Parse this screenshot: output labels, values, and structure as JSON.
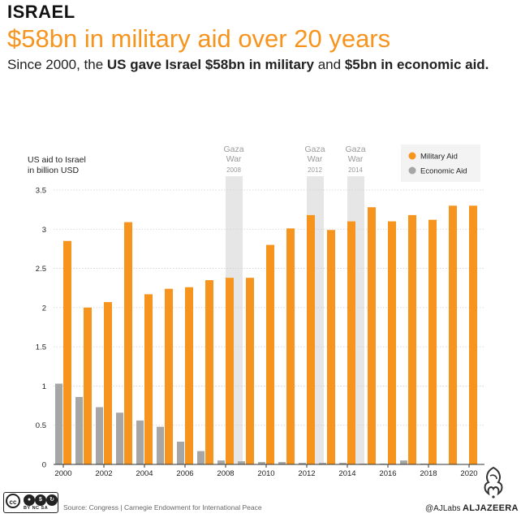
{
  "header": {
    "kicker": "ISRAEL",
    "title": "$58bn in military aid over 20 years",
    "subtitle_pre": "Since 2000, the ",
    "subtitle_bold1": "US gave Israel $58bn in military",
    "subtitle_mid": " and ",
    "subtitle_bold2": "$5bn in economic aid."
  },
  "chart_data": {
    "type": "bar",
    "ylabel_line1": "US aid to Israel",
    "ylabel_line2": "in billion USD",
    "ylim": [
      0,
      3.5
    ],
    "yticks": [
      0,
      0.5,
      1,
      1.5,
      2,
      2.5,
      3,
      3.5
    ],
    "ytick_labels": [
      "0",
      "0.5",
      "1",
      "1.5",
      "2",
      "2.5",
      "3",
      "3.5"
    ],
    "categories": [
      2000,
      2001,
      2002,
      2003,
      2004,
      2005,
      2006,
      2007,
      2008,
      2009,
      2010,
      2011,
      2012,
      2013,
      2014,
      2015,
      2016,
      2017,
      2018,
      2019,
      2020
    ],
    "xtick_labels": [
      "2000",
      "2002",
      "2004",
      "2006",
      "2008",
      "2010",
      "2012",
      "2014",
      "2016",
      "2018",
      "2020"
    ],
    "xtick_years": [
      2000,
      2002,
      2004,
      2006,
      2008,
      2010,
      2012,
      2014,
      2016,
      2018,
      2020
    ],
    "series": [
      {
        "name": "Military Aid",
        "color": "#f7941d",
        "values": [
          2.85,
          2.0,
          2.07,
          3.09,
          2.17,
          2.24,
          2.26,
          2.35,
          2.38,
          2.38,
          2.8,
          3.01,
          3.18,
          2.99,
          3.1,
          3.28,
          3.1,
          3.18,
          3.12,
          3.3,
          3.3
        ]
      },
      {
        "name": "Economic Aid",
        "color": "#a6a6a6",
        "values": [
          1.03,
          0.86,
          0.73,
          0.66,
          0.56,
          0.48,
          0.29,
          0.17,
          0.05,
          0.04,
          0.03,
          0.03,
          0.02,
          0.02,
          0.02,
          0.01,
          0.01,
          0.05,
          0.01,
          0.0,
          0.0
        ]
      }
    ],
    "annotations": [
      {
        "year": 2008,
        "line1": "Gaza",
        "line2": "War",
        "line3": "2008"
      },
      {
        "year": 2012,
        "line1": "Gaza",
        "line2": "War",
        "line3": "2012"
      },
      {
        "year": 2014,
        "line1": "Gaza",
        "line2": "War",
        "line3": "2014"
      }
    ],
    "legend_position": "top-right",
    "grid": true
  },
  "footer": {
    "cc_label": "cc",
    "cc_terms": "BY  NC  SA",
    "source": "Source: Congress | Carnegie Endowment for International Peace",
    "credit": "@AJLabs",
    "brand": "ALJAZEERA"
  }
}
